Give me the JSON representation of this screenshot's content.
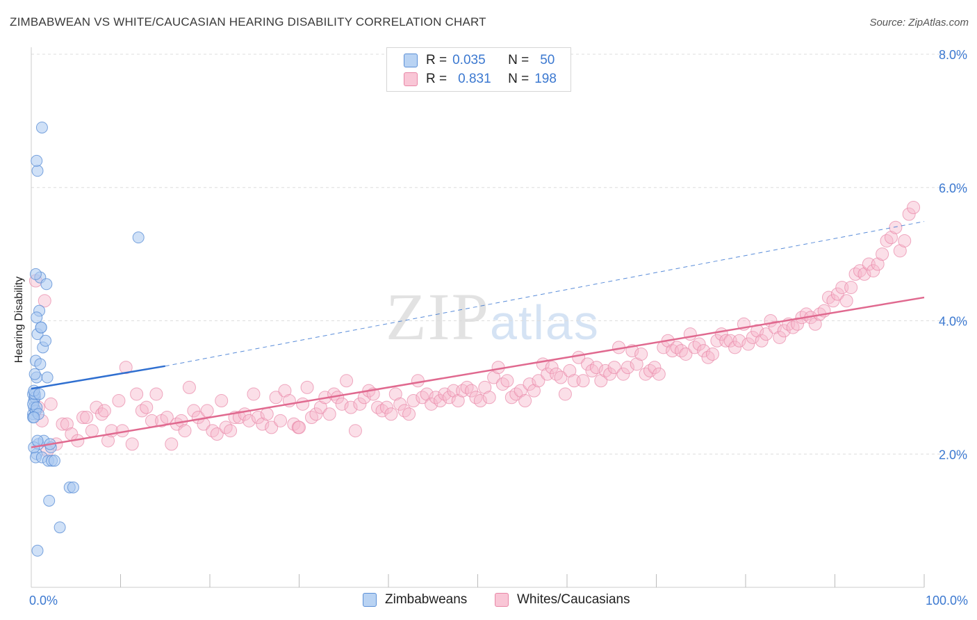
{
  "title": "ZIMBABWEAN VS WHITE/CAUCASIAN HEARING DISABILITY CORRELATION CHART",
  "source": "Source: ZipAtlas.com",
  "watermark": {
    "part1": "ZIP",
    "part2": "atlas"
  },
  "legend_top": [
    {
      "r_label": "R =",
      "r_value": "0.035",
      "n_label": "N =",
      "n_value": "50"
    },
    {
      "r_label": "R =",
      "r_value": "0.831",
      "n_label": "N =",
      "n_value": "198"
    }
  ],
  "legend_bottom": [
    "Zimbabweans",
    "Whites/Caucasians"
  ],
  "colors": {
    "zim_fill": "#a9c8f0",
    "zim_stroke": "#5b8fd6",
    "zim_line": "#2f6fd0",
    "white_fill": "#f6b9cc",
    "white_stroke": "#e886a6",
    "white_line": "#e0698f",
    "axis_text": "#3b78d0",
    "grid": "#dddddd"
  },
  "chart_data": {
    "type": "scatter",
    "title": "ZIMBABWEAN VS WHITE/CAUCASIAN HEARING DISABILITY CORRELATION CHART",
    "xlabel": "",
    "ylabel": "Hearing Disability",
    "x_unit": "%",
    "xlim": [
      0,
      100
    ],
    "ylim": [
      0,
      8.0
    ],
    "x_tick_labels": [
      "0.0%",
      "100.0%"
    ],
    "y_ticks": [
      2.0,
      4.0,
      6.0,
      8.0
    ],
    "y_tick_labels": [
      "2.0%",
      "4.0%",
      "6.0%",
      "8.0%"
    ],
    "grid": true,
    "series": [
      {
        "name": "Zimbabweans",
        "r": 0.035,
        "n": 50,
        "trend": {
          "x0": 0,
          "y0": 2.98,
          "x1": 15,
          "y1": 3.32,
          "dashed_to_x": 100,
          "dashed_to_y": 5.49
        },
        "points": [
          [
            0.2,
            2.6
          ],
          [
            0.3,
            2.8
          ],
          [
            0.2,
            2.9
          ],
          [
            0.4,
            2.85
          ],
          [
            0.3,
            2.7
          ],
          [
            0.5,
            2.65
          ],
          [
            0.2,
            2.75
          ],
          [
            0.4,
            2.9
          ],
          [
            0.6,
            2.7
          ],
          [
            0.3,
            2.95
          ],
          [
            0.5,
            3.4
          ],
          [
            0.6,
            3.15
          ],
          [
            1.0,
            3.35
          ],
          [
            1.8,
            3.15
          ],
          [
            0.7,
            3.8
          ],
          [
            1.1,
            3.9
          ],
          [
            1.3,
            3.6
          ],
          [
            1.6,
            3.7
          ],
          [
            0.9,
            4.15
          ],
          [
            0.6,
            4.05
          ],
          [
            1.0,
            4.65
          ],
          [
            1.7,
            4.55
          ],
          [
            0.5,
            4.7
          ],
          [
            0.7,
            6.25
          ],
          [
            0.6,
            6.4
          ],
          [
            1.2,
            6.9
          ],
          [
            12,
            5.25
          ],
          [
            0.8,
            2.15
          ],
          [
            1.4,
            2.2
          ],
          [
            2.2,
            2.1
          ],
          [
            0.6,
            2.0
          ],
          [
            0.5,
            1.95
          ],
          [
            1.2,
            1.95
          ],
          [
            1.9,
            1.9
          ],
          [
            2.3,
            1.9
          ],
          [
            2.6,
            1.9
          ],
          [
            2.1,
            2.15
          ],
          [
            2.0,
            1.3
          ],
          [
            4.3,
            1.5
          ],
          [
            4.7,
            1.5
          ],
          [
            3.2,
            0.9
          ],
          [
            0.7,
            0.55
          ],
          [
            0.2,
            2.55
          ],
          [
            0.4,
            3.2
          ],
          [
            0.8,
            2.6
          ],
          [
            1.1,
            3.9
          ],
          [
            0.3,
            2.1
          ],
          [
            0.9,
            2.9
          ],
          [
            0.3,
            2.55
          ],
          [
            0.7,
            2.2
          ]
        ]
      },
      {
        "name": "Whites/Caucasians",
        "r": 0.831,
        "n": 198,
        "trend": {
          "x0": 0,
          "y0": 2.1,
          "x1": 100,
          "y1": 4.35
        },
        "points": [
          [
            0.5,
            4.6
          ],
          [
            1.5,
            4.3
          ],
          [
            0.8,
            2.7
          ],
          [
            1.2,
            2.5
          ],
          [
            2.2,
            2.75
          ],
          [
            2.8,
            2.15
          ],
          [
            3.5,
            2.45
          ],
          [
            4.0,
            2.45
          ],
          [
            4.5,
            2.3
          ],
          [
            5.2,
            2.2
          ],
          [
            5.8,
            2.55
          ],
          [
            6.2,
            2.55
          ],
          [
            6.8,
            2.35
          ],
          [
            7.3,
            2.7
          ],
          [
            7.9,
            2.6
          ],
          [
            8.6,
            2.2
          ],
          [
            9.0,
            2.35
          ],
          [
            9.8,
            2.8
          ],
          [
            10.2,
            2.35
          ],
          [
            10.6,
            3.3
          ],
          [
            11.3,
            2.15
          ],
          [
            11.8,
            2.9
          ],
          [
            12.4,
            2.65
          ],
          [
            12.9,
            2.7
          ],
          [
            13.5,
            2.5
          ],
          [
            14.0,
            2.9
          ],
          [
            14.6,
            2.5
          ],
          [
            15.2,
            2.55
          ],
          [
            15.7,
            2.15
          ],
          [
            16.3,
            2.45
          ],
          [
            16.8,
            2.5
          ],
          [
            17.2,
            2.35
          ],
          [
            17.7,
            3.0
          ],
          [
            18.2,
            2.65
          ],
          [
            18.7,
            2.55
          ],
          [
            19.3,
            2.45
          ],
          [
            19.7,
            2.65
          ],
          [
            20.3,
            2.35
          ],
          [
            20.8,
            2.3
          ],
          [
            21.3,
            2.8
          ],
          [
            21.8,
            2.4
          ],
          [
            22.3,
            2.35
          ],
          [
            22.8,
            2.55
          ],
          [
            23.3,
            2.55
          ],
          [
            23.9,
            2.6
          ],
          [
            24.4,
            2.5
          ],
          [
            24.9,
            2.9
          ],
          [
            25.4,
            2.55
          ],
          [
            25.9,
            2.45
          ],
          [
            26.4,
            2.6
          ],
          [
            26.9,
            2.4
          ],
          [
            27.4,
            2.85
          ],
          [
            27.9,
            2.5
          ],
          [
            28.4,
            2.95
          ],
          [
            28.9,
            2.8
          ],
          [
            29.4,
            2.45
          ],
          [
            29.9,
            2.4
          ],
          [
            30.4,
            2.75
          ],
          [
            30.9,
            3.0
          ],
          [
            31.4,
            2.55
          ],
          [
            31.9,
            2.6
          ],
          [
            32.4,
            2.7
          ],
          [
            32.9,
            2.85
          ],
          [
            33.4,
            2.6
          ],
          [
            33.9,
            2.9
          ],
          [
            34.3,
            2.85
          ],
          [
            34.8,
            2.75
          ],
          [
            35.3,
            3.1
          ],
          [
            35.8,
            2.7
          ],
          [
            36.3,
            2.35
          ],
          [
            36.8,
            2.75
          ],
          [
            37.3,
            2.85
          ],
          [
            37.8,
            2.95
          ],
          [
            38.3,
            2.9
          ],
          [
            38.8,
            2.7
          ],
          [
            39.3,
            2.65
          ],
          [
            39.8,
            2.7
          ],
          [
            40.3,
            2.6
          ],
          [
            40.8,
            2.9
          ],
          [
            41.3,
            2.75
          ],
          [
            41.8,
            2.65
          ],
          [
            42.3,
            2.6
          ],
          [
            42.8,
            2.8
          ],
          [
            43.3,
            3.1
          ],
          [
            43.8,
            2.85
          ],
          [
            44.3,
            2.9
          ],
          [
            44.8,
            2.75
          ],
          [
            45.3,
            2.85
          ],
          [
            45.8,
            2.8
          ],
          [
            46.3,
            2.9
          ],
          [
            46.8,
            2.85
          ],
          [
            47.3,
            2.95
          ],
          [
            47.8,
            2.8
          ],
          [
            48.3,
            2.95
          ],
          [
            48.8,
            3.0
          ],
          [
            49.3,
            2.95
          ],
          [
            49.8,
            2.85
          ],
          [
            50.3,
            2.8
          ],
          [
            50.8,
            3.0
          ],
          [
            51.3,
            2.85
          ],
          [
            51.8,
            3.15
          ],
          [
            52.3,
            3.3
          ],
          [
            52.8,
            3.05
          ],
          [
            53.3,
            3.1
          ],
          [
            53.8,
            2.85
          ],
          [
            54.3,
            2.9
          ],
          [
            54.8,
            2.95
          ],
          [
            55.3,
            2.8
          ],
          [
            55.8,
            3.05
          ],
          [
            56.3,
            2.95
          ],
          [
            56.8,
            3.1
          ],
          [
            57.3,
            3.35
          ],
          [
            57.8,
            3.2
          ],
          [
            58.3,
            3.3
          ],
          [
            58.8,
            3.2
          ],
          [
            59.3,
            3.15
          ],
          [
            59.8,
            2.9
          ],
          [
            60.3,
            3.25
          ],
          [
            60.8,
            3.1
          ],
          [
            61.3,
            3.45
          ],
          [
            61.8,
            3.1
          ],
          [
            62.3,
            3.35
          ],
          [
            62.8,
            3.25
          ],
          [
            63.3,
            3.3
          ],
          [
            63.8,
            3.1
          ],
          [
            64.3,
            3.25
          ],
          [
            64.8,
            3.2
          ],
          [
            65.3,
            3.3
          ],
          [
            65.8,
            3.6
          ],
          [
            66.3,
            3.2
          ],
          [
            66.8,
            3.3
          ],
          [
            67.3,
            3.55
          ],
          [
            67.8,
            3.35
          ],
          [
            68.3,
            3.5
          ],
          [
            68.8,
            3.2
          ],
          [
            69.3,
            3.25
          ],
          [
            69.8,
            3.3
          ],
          [
            70.3,
            3.2
          ],
          [
            70.8,
            3.6
          ],
          [
            71.3,
            3.7
          ],
          [
            71.8,
            3.55
          ],
          [
            72.3,
            3.6
          ],
          [
            72.8,
            3.55
          ],
          [
            73.3,
            3.5
          ],
          [
            73.8,
            3.8
          ],
          [
            74.3,
            3.6
          ],
          [
            74.8,
            3.65
          ],
          [
            75.3,
            3.55
          ],
          [
            75.8,
            3.45
          ],
          [
            76.3,
            3.5
          ],
          [
            76.8,
            3.7
          ],
          [
            77.3,
            3.8
          ],
          [
            77.8,
            3.7
          ],
          [
            78.3,
            3.7
          ],
          [
            78.8,
            3.6
          ],
          [
            79.3,
            3.7
          ],
          [
            79.8,
            3.95
          ],
          [
            80.3,
            3.65
          ],
          [
            80.8,
            3.75
          ],
          [
            81.3,
            3.85
          ],
          [
            81.8,
            3.7
          ],
          [
            82.3,
            3.8
          ],
          [
            82.8,
            4.0
          ],
          [
            83.3,
            3.9
          ],
          [
            83.8,
            3.75
          ],
          [
            84.3,
            3.85
          ],
          [
            84.8,
            3.95
          ],
          [
            85.3,
            3.9
          ],
          [
            85.8,
            3.95
          ],
          [
            86.3,
            4.05
          ],
          [
            86.8,
            4.1
          ],
          [
            87.3,
            4.05
          ],
          [
            87.8,
            3.95
          ],
          [
            88.3,
            4.1
          ],
          [
            88.8,
            4.15
          ],
          [
            89.3,
            4.35
          ],
          [
            89.8,
            4.3
          ],
          [
            90.3,
            4.4
          ],
          [
            90.8,
            4.5
          ],
          [
            91.3,
            4.3
          ],
          [
            91.8,
            4.5
          ],
          [
            92.3,
            4.7
          ],
          [
            92.8,
            4.75
          ],
          [
            93.3,
            4.7
          ],
          [
            93.8,
            4.85
          ],
          [
            94.3,
            4.75
          ],
          [
            94.8,
            4.85
          ],
          [
            95.3,
            5.0
          ],
          [
            95.8,
            5.2
          ],
          [
            96.3,
            5.25
          ],
          [
            96.8,
            5.4
          ],
          [
            97.3,
            5.05
          ],
          [
            97.8,
            5.2
          ],
          [
            98.3,
            5.6
          ],
          [
            98.8,
            5.7
          ],
          [
            30.0,
            2.4
          ],
          [
            1.8,
            2.05
          ],
          [
            8.2,
            2.65
          ]
        ]
      }
    ]
  }
}
